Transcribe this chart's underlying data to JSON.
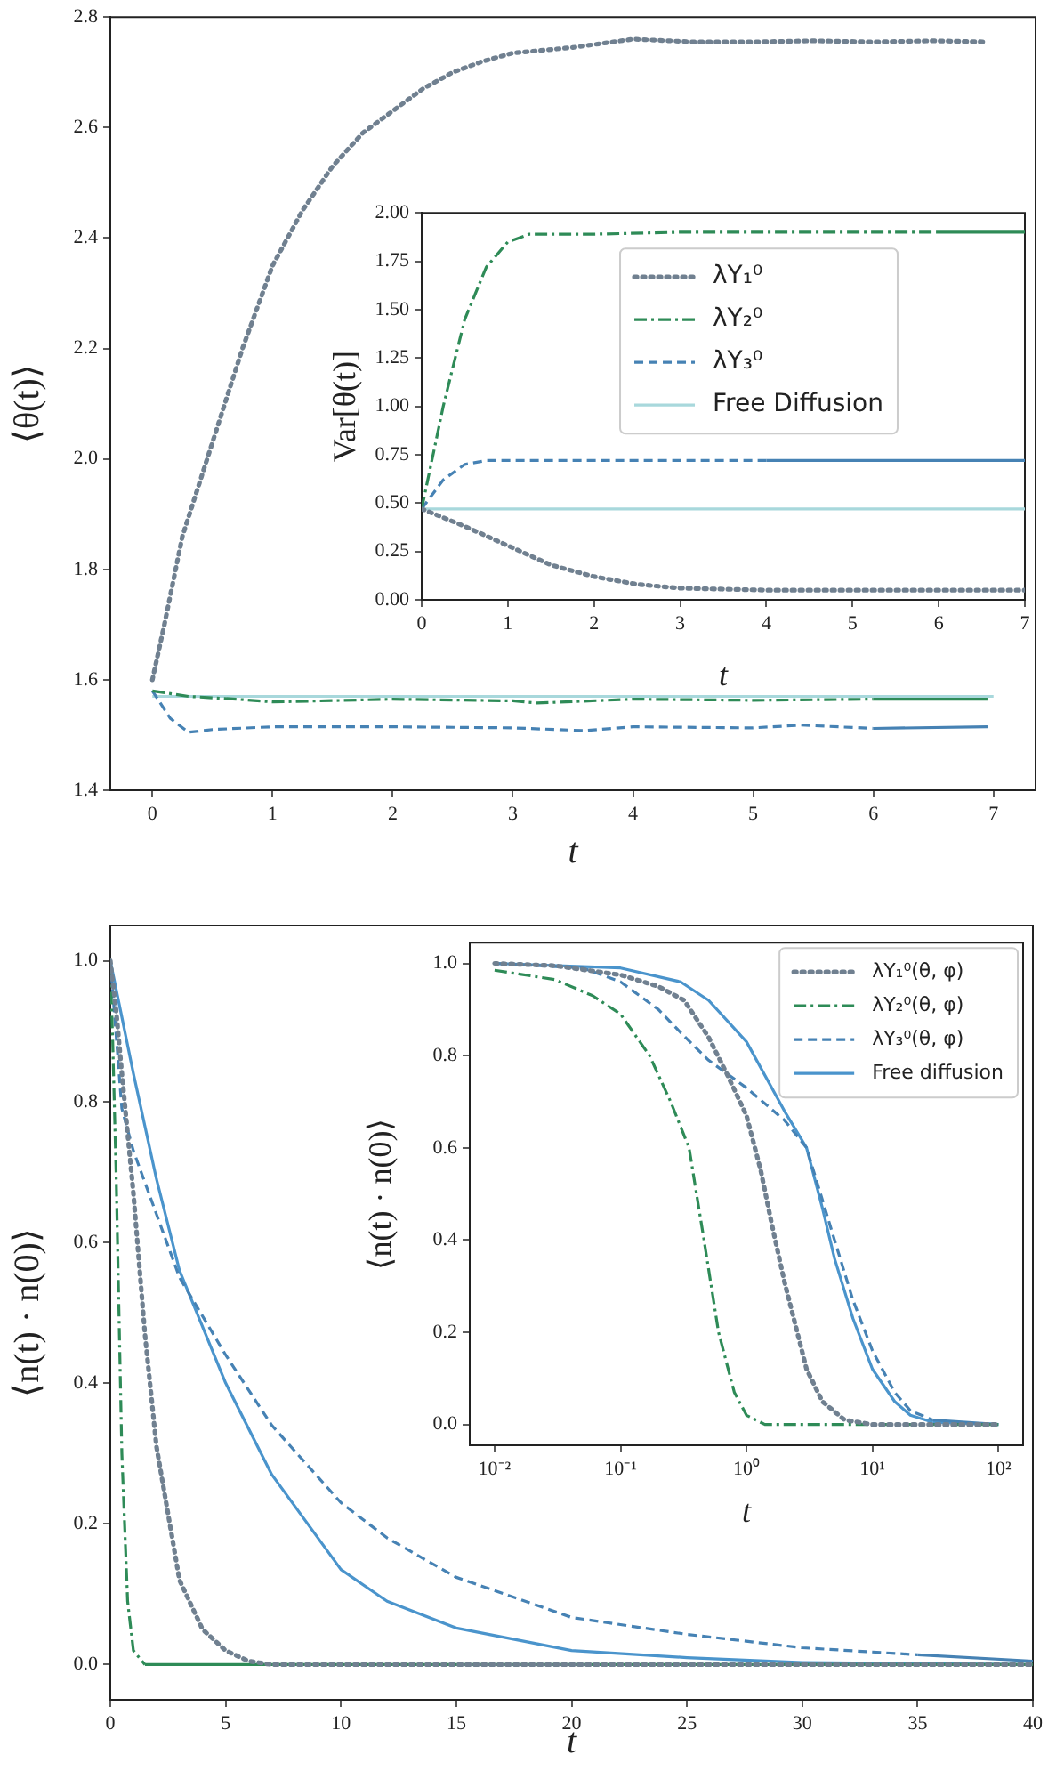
{
  "chart_data": [
    {
      "type": "line",
      "xlabel": "t",
      "ylabel": "⟨θ(t)⟩",
      "xlim": [
        -0.35,
        7.35
      ],
      "ylim": [
        1.4,
        2.8
      ],
      "xticks": [
        0,
        1,
        2,
        3,
        4,
        5,
        6,
        7
      ],
      "yticks": [
        1.4,
        1.6,
        1.8,
        {
          "value": 2.0,
          "label": "2.0"
        },
        2.2,
        2.4,
        2.6,
        2.8
      ],
      "grid": false,
      "series": [
        {
          "color": "#708090",
          "line_style": "dotted",
          "x": [
            0,
            0.1,
            0.25,
            0.5,
            0.75,
            1,
            1.25,
            1.5,
            1.75,
            2,
            2.25,
            2.5,
            2.75,
            3,
            3.5,
            4,
            4.5,
            5,
            5.5,
            6,
            6.5,
            6.95
          ],
          "values": [
            1.6,
            1.7,
            1.86,
            2.03,
            2.2,
            2.35,
            2.45,
            2.53,
            2.59,
            2.63,
            2.67,
            2.7,
            2.72,
            2.735,
            2.745,
            2.76,
            2.755,
            2.755,
            2.757,
            2.755,
            2.757,
            2.755
          ]
        },
        {
          "color": "#2e8b57",
          "line_style": "dashdot",
          "x": [
            0,
            0.3,
            0.7,
            1,
            2,
            3,
            3.2,
            4,
            5,
            6,
            6.95
          ],
          "values": [
            1.58,
            1.57,
            1.565,
            1.56,
            1.565,
            1.562,
            1.558,
            1.565,
            1.563,
            1.565,
            1.565
          ]
        },
        {
          "color": "#4682b4",
          "line_style": "dashed",
          "x": [
            0,
            0.15,
            0.3,
            0.5,
            1,
            2,
            3,
            3.6,
            4,
            5,
            5.4,
            6,
            6.95
          ],
          "values": [
            1.58,
            1.53,
            1.505,
            1.51,
            1.515,
            1.515,
            1.513,
            1.508,
            1.515,
            1.513,
            1.518,
            1.512,
            1.515
          ]
        },
        {
          "color": "#a8d8dc",
          "line_style": "solid",
          "x": [
            0,
            7
          ],
          "values": [
            1.57,
            1.57
          ]
        }
      ]
    },
    {
      "type": "line",
      "xlabel": "t",
      "ylabel": "Var[θ(t)]",
      "xlim": [
        0,
        7
      ],
      "ylim": [
        0,
        2
      ],
      "xticks": [
        0,
        1,
        2,
        3,
        4,
        5,
        6,
        7
      ],
      "yticks": [
        {
          "value": 0,
          "label": "0.00"
        },
        {
          "value": 0.25,
          "label": "0.25"
        },
        {
          "value": 0.5,
          "label": "0.50"
        },
        {
          "value": 0.75,
          "label": "0.75"
        },
        {
          "value": 1,
          "label": "1.00"
        },
        {
          "value": 1.25,
          "label": "1.25"
        },
        {
          "value": 1.5,
          "label": "1.50"
        },
        {
          "value": 1.75,
          "label": "1.75"
        },
        {
          "value": 2,
          "label": "2.00"
        }
      ],
      "grid": false,
      "legend": "top",
      "series": [
        {
          "name": "λY₁⁰",
          "color": "#708090",
          "line_style": "dotted",
          "x": [
            0,
            0.5,
            1,
            1.5,
            2,
            2.5,
            3,
            4,
            5,
            6,
            7
          ],
          "values": [
            0.47,
            0.38,
            0.28,
            0.18,
            0.12,
            0.08,
            0.06,
            0.05,
            0.05,
            0.05,
            0.05
          ]
        },
        {
          "name": "λY₂⁰",
          "color": "#2e8b57",
          "line_style": "dashdot",
          "x": [
            0,
            0.25,
            0.5,
            0.75,
            1,
            1.25,
            2,
            3,
            4,
            5,
            6,
            7
          ],
          "values": [
            0.47,
            1.0,
            1.45,
            1.72,
            1.85,
            1.89,
            1.89,
            1.9,
            1.9,
            1.9,
            1.9,
            1.9
          ]
        },
        {
          "name": "λY₃⁰",
          "color": "#4682b4",
          "line_style": "dashed",
          "x": [
            0,
            0.25,
            0.5,
            0.75,
            2,
            4,
            7
          ],
          "values": [
            0.47,
            0.62,
            0.7,
            0.72,
            0.72,
            0.72,
            0.72
          ]
        },
        {
          "name": "Free Diffusion",
          "color": "#a8d8dc",
          "line_style": "solid",
          "x": [
            0,
            7
          ],
          "values": [
            0.47,
            0.47
          ]
        }
      ]
    },
    {
      "type": "line",
      "xlabel": "t",
      "ylabel": "⟨n(t) · n(0)⟩",
      "xlim": [
        0,
        40
      ],
      "ylim": [
        -0.05,
        1.05
      ],
      "xticks": [
        0,
        5,
        10,
        15,
        20,
        25,
        30,
        35,
        40
      ],
      "yticks": [
        {
          "value": 0,
          "label": "0.0"
        },
        0.2,
        0.4,
        0.6,
        0.8,
        {
          "value": 1,
          "label": "1.0"
        }
      ],
      "grid": false,
      "series": [
        {
          "color": "#708090",
          "line_style": "dotted",
          "x": [
            0,
            0.25,
            0.5,
            1,
            1.5,
            2,
            3,
            4,
            5,
            6,
            7,
            40
          ],
          "values": [
            1,
            0.93,
            0.84,
            0.67,
            0.47,
            0.31,
            0.12,
            0.05,
            0.02,
            0.005,
            0,
            0
          ]
        },
        {
          "color": "#2e8b57",
          "line_style": "dashdot",
          "x": [
            0,
            0.1,
            0.25,
            0.5,
            0.75,
            1,
            1.5,
            40
          ],
          "values": [
            0.99,
            0.89,
            0.7,
            0.3,
            0.09,
            0.02,
            0,
            0
          ]
        },
        {
          "color": "#4682b4",
          "line_style": "dashed",
          "x": [
            0,
            0.5,
            1,
            2,
            3,
            5,
            7,
            10,
            12,
            15,
            20,
            25,
            30,
            35,
            40
          ],
          "values": [
            1,
            0.79,
            0.73,
            0.64,
            0.55,
            0.44,
            0.34,
            0.23,
            0.18,
            0.124,
            0.067,
            0.043,
            0.024,
            0.014,
            0.005
          ]
        },
        {
          "color": "#4a94cc",
          "line_style": "solid",
          "x": [
            0,
            1,
            2,
            3,
            5,
            7,
            10,
            12,
            15,
            20,
            25,
            30,
            40
          ],
          "values": [
            1,
            0.84,
            0.69,
            0.56,
            0.4,
            0.27,
            0.135,
            0.09,
            0.052,
            0.02,
            0.01,
            0.003,
            0
          ]
        }
      ]
    },
    {
      "type": "line",
      "xlabel": "t",
      "ylabel": "⟨n(t) · n(0)⟩",
      "log": "x",
      "xlim": [
        0.00635,
        157
      ],
      "ylim": [
        -0.045,
        1.045
      ],
      "xticks": [
        {
          "value": 0.01,
          "label": "10⁻²"
        },
        {
          "value": 0.1,
          "label": "10⁻¹"
        },
        {
          "value": 1,
          "label": "10⁰"
        },
        {
          "value": 10,
          "label": "10¹"
        },
        {
          "value": 100,
          "label": "10²"
        }
      ],
      "yticks": [
        {
          "value": 0,
          "label": "0.0"
        },
        0.2,
        0.4,
        0.6,
        0.8,
        {
          "value": 1,
          "label": "1.0"
        }
      ],
      "grid": false,
      "legend": "top right",
      "series": [
        {
          "name": "λY₁⁰(θ, φ)",
          "color": "#708090",
          "line_style": "dotted",
          "x": [
            0.01,
            0.03,
            0.1,
            0.2,
            0.32,
            0.5,
            0.7,
            1,
            1.3,
            1.6,
            2,
            3,
            4,
            6,
            10,
            100
          ],
          "values": [
            1,
            0.995,
            0.975,
            0.95,
            0.92,
            0.84,
            0.76,
            0.67,
            0.55,
            0.43,
            0.31,
            0.12,
            0.05,
            0.01,
            0,
            0
          ]
        },
        {
          "name": "λY₂⁰(θ, φ)",
          "color": "#2e8b57",
          "line_style": "dashdot",
          "x": [
            0.01,
            0.03,
            0.06,
            0.1,
            0.17,
            0.25,
            0.35,
            0.46,
            0.6,
            0.8,
            1,
            1.4,
            80,
            100
          ],
          "values": [
            0.985,
            0.965,
            0.93,
            0.89,
            0.8,
            0.7,
            0.6,
            0.4,
            0.2,
            0.07,
            0.02,
            0,
            0,
            0
          ]
        },
        {
          "name": "λY₃⁰(θ, φ)",
          "color": "#4682b4",
          "line_style": "dashed",
          "x": [
            0.01,
            0.05,
            0.1,
            0.2,
            0.3,
            0.5,
            1,
            2,
            3,
            5,
            7,
            10,
            15,
            20,
            30,
            100
          ],
          "values": [
            1,
            0.99,
            0.96,
            0.9,
            0.85,
            0.79,
            0.73,
            0.66,
            0.6,
            0.4,
            0.27,
            0.16,
            0.07,
            0.03,
            0.01,
            0
          ]
        },
        {
          "name": "Free diffusion",
          "color": "#4a94cc",
          "line_style": "solid",
          "x": [
            0.01,
            0.1,
            0.3,
            0.5,
            1,
            2,
            3,
            4,
            5,
            7,
            10,
            15,
            20,
            30,
            100
          ],
          "values": [
            1,
            0.99,
            0.96,
            0.92,
            0.83,
            0.68,
            0.6,
            0.47,
            0.36,
            0.23,
            0.12,
            0.05,
            0.02,
            0.005,
            0
          ]
        }
      ]
    }
  ]
}
